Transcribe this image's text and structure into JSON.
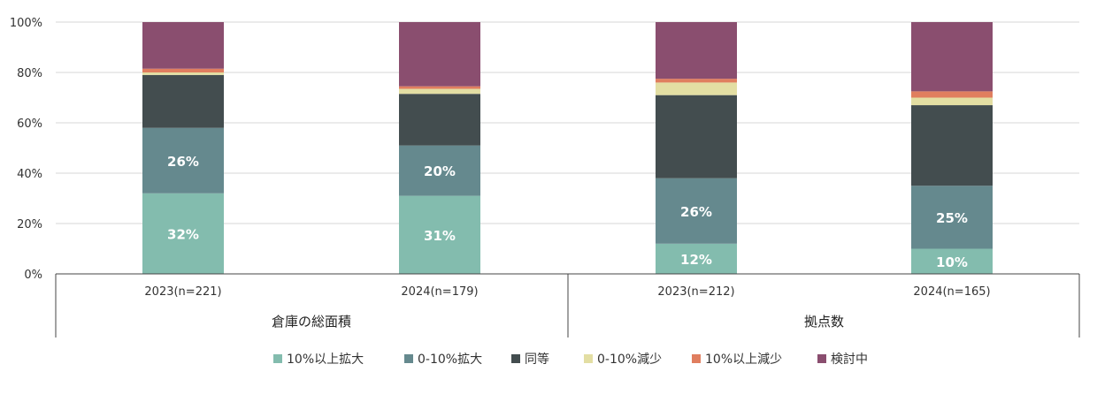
{
  "chart_data": {
    "type": "bar",
    "stacked": true,
    "ylim": [
      0,
      100
    ],
    "y_ticks": [
      "0%",
      "20%",
      "40%",
      "60%",
      "80%",
      "100%"
    ],
    "y_tick_values": [
      0,
      20,
      40,
      60,
      80,
      100
    ],
    "grid": true,
    "legend_position": "bottom",
    "categories": [
      "2023(n=221)",
      "2024(n=179)",
      "2023(n=212)",
      "2024(n=165)"
    ],
    "groups": [
      {
        "label": "倉庫の総面積",
        "categories": [
          0,
          1
        ]
      },
      {
        "label": "拠点数",
        "categories": [
          2,
          3
        ]
      }
    ],
    "series": [
      {
        "name": "10%以上拡大",
        "color": "#83BCAE",
        "values": [
          32,
          31,
          12,
          10
        ],
        "labels": [
          "32%",
          "31%",
          "12%",
          "10%"
        ]
      },
      {
        "name": "0-10%拡大",
        "color": "#65898E",
        "values": [
          26,
          20,
          26,
          25
        ],
        "labels": [
          "26%",
          "20%",
          "26%",
          "25%"
        ]
      },
      {
        "name": "同等",
        "color": "#434D4F",
        "values": [
          21,
          20.5,
          33,
          32
        ],
        "labels": [
          "",
          "",
          "",
          ""
        ]
      },
      {
        "name": "0-10%減少",
        "color": "#E3DEA3",
        "values": [
          1,
          2,
          5,
          3
        ],
        "labels": [
          "",
          "",
          "",
          ""
        ]
      },
      {
        "name": "10%以上減少",
        "color": "#E07E5F",
        "values": [
          1.5,
          1,
          1.5,
          2.5
        ],
        "labels": [
          "",
          "",
          "",
          ""
        ]
      },
      {
        "name": "検討中",
        "color": "#8A4E6F",
        "values": [
          18.5,
          25.5,
          22.5,
          27.5
        ],
        "labels": [
          "",
          "",
          "",
          ""
        ]
      }
    ]
  }
}
